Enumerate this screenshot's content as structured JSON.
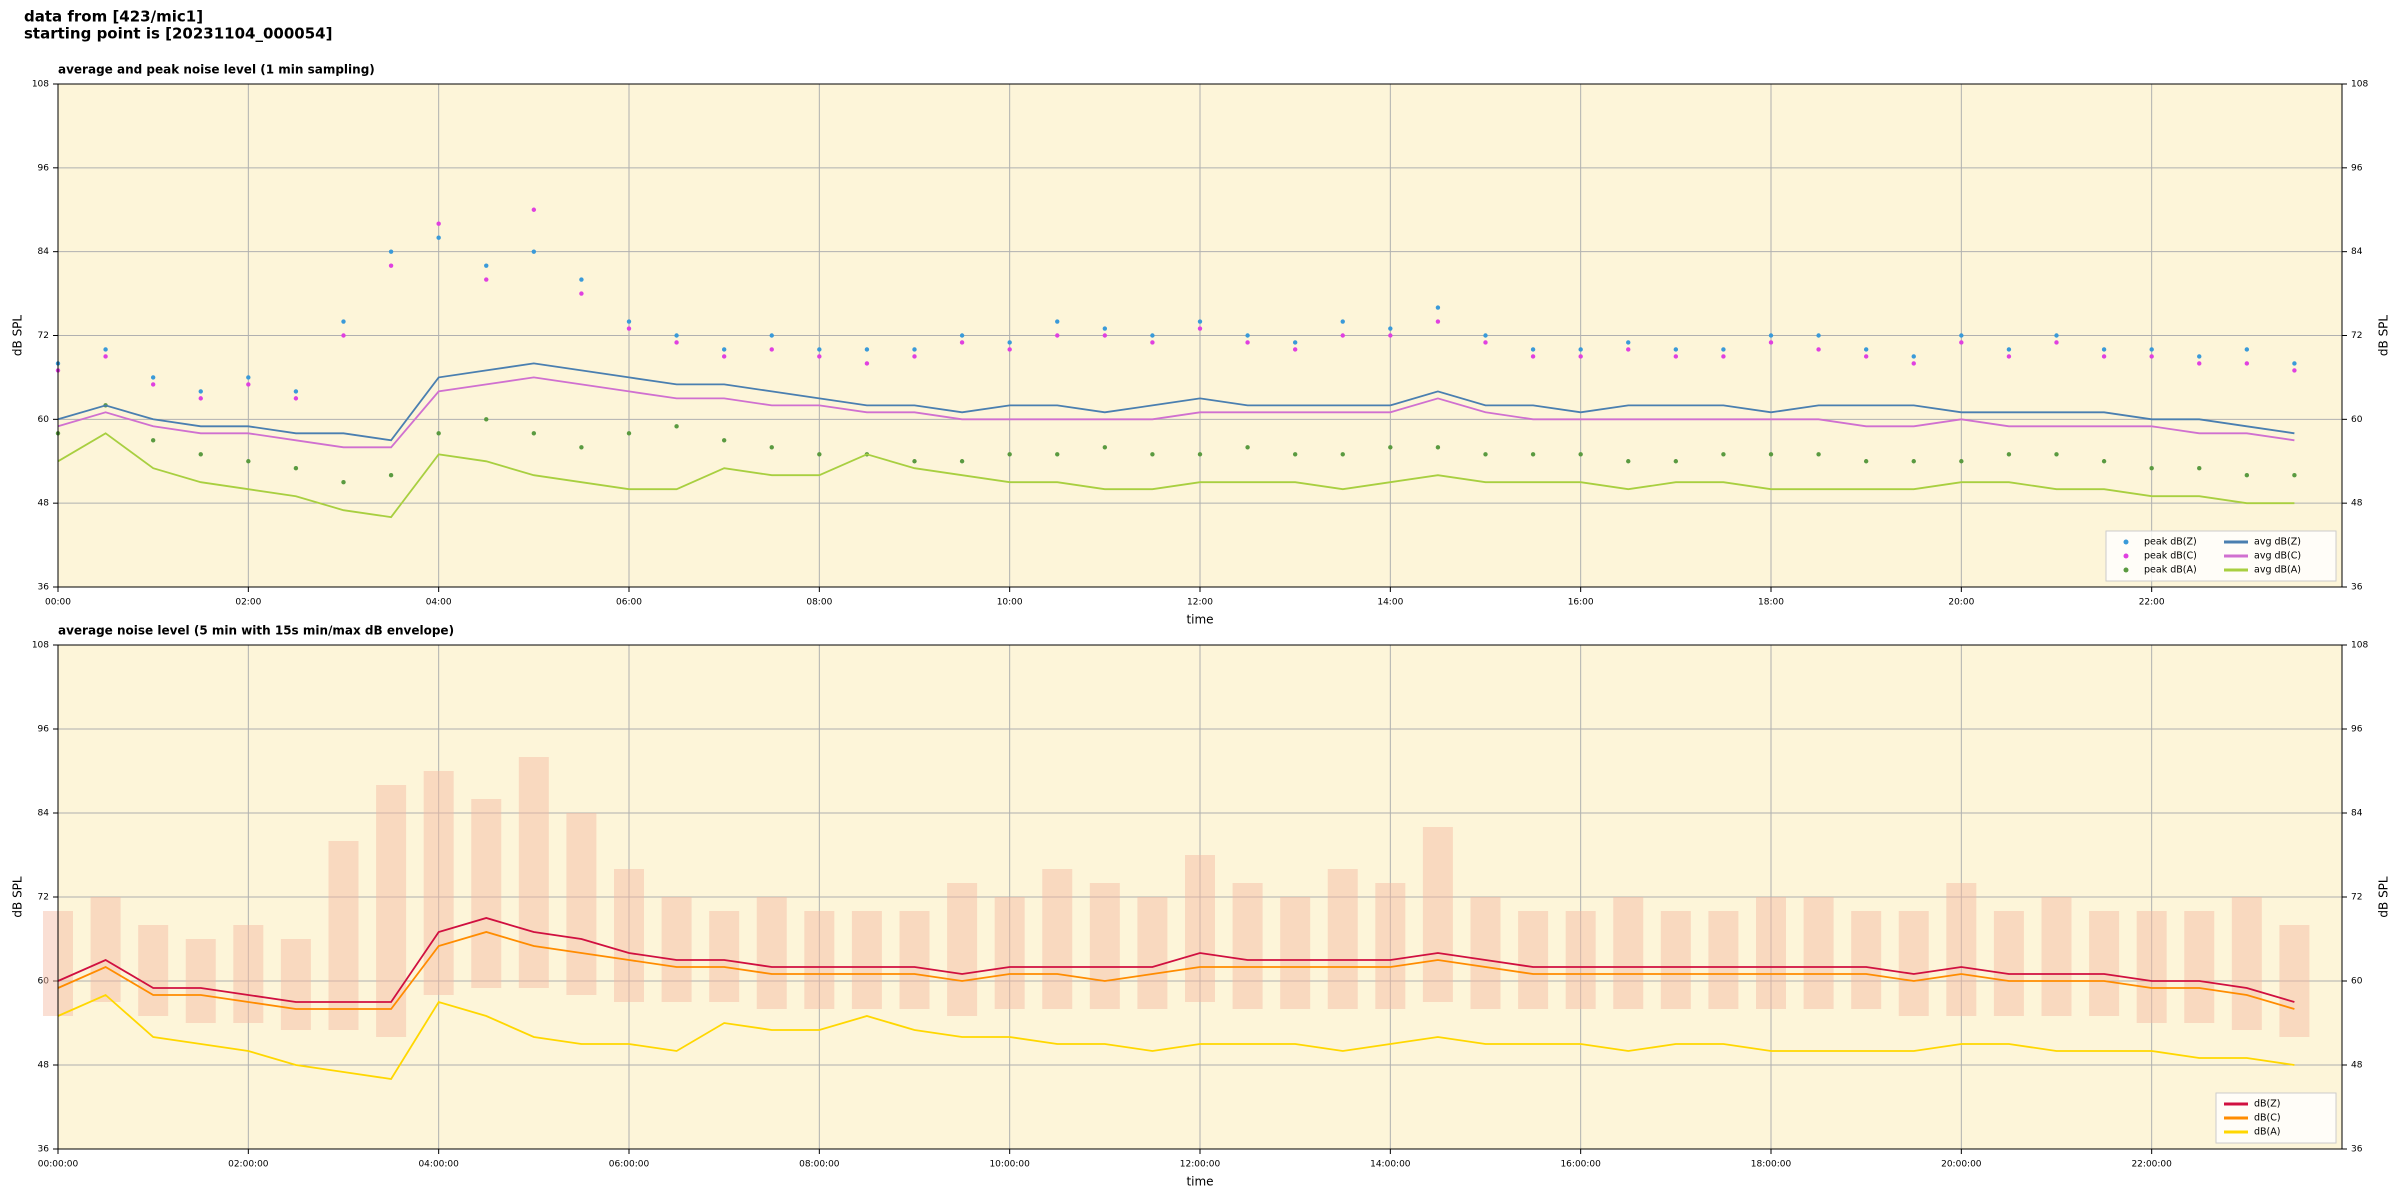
{
  "header": {
    "line1": "data from [423/mic1]",
    "line2": "starting point is [20231104_000054]"
  },
  "chart_data": [
    {
      "type": "line",
      "title": "average and peak noise level (1 min sampling)",
      "x_label": "time",
      "y_label": "dB SPL",
      "xlim": [
        "00:00",
        "24:00"
      ],
      "xticks": [
        "00:00",
        "02:00",
        "04:00",
        "06:00",
        "08:00",
        "10:00",
        "12:00",
        "14:00",
        "16:00",
        "18:00",
        "20:00",
        "22:00"
      ],
      "ylim": [
        36,
        108
      ],
      "yticks": [
        36,
        48,
        60,
        72,
        84,
        96,
        108
      ],
      "grid": true,
      "legend": "lower right",
      "x": [
        "00:00",
        "00:30",
        "01:00",
        "01:30",
        "02:00",
        "02:30",
        "03:00",
        "03:30",
        "04:00",
        "04:30",
        "05:00",
        "05:30",
        "06:00",
        "06:30",
        "07:00",
        "07:30",
        "08:00",
        "08:30",
        "09:00",
        "09:30",
        "10:00",
        "10:30",
        "11:00",
        "11:30",
        "12:00",
        "12:30",
        "13:00",
        "13:30",
        "14:00",
        "14:30",
        "15:00",
        "15:30",
        "16:00",
        "16:30",
        "17:00",
        "17:30",
        "18:00",
        "18:30",
        "19:00",
        "19:30",
        "20:00",
        "20:30",
        "21:00",
        "21:30",
        "22:00",
        "22:30",
        "23:00",
        "23:30"
      ],
      "series": [
        {
          "name": "peak dB(Z)",
          "type": "scatter",
          "color": "#3a9ad9",
          "values": [
            68,
            70,
            66,
            64,
            66,
            64,
            74,
            84,
            86,
            82,
            84,
            80,
            74,
            72,
            70,
            72,
            70,
            70,
            70,
            72,
            71,
            74,
            73,
            72,
            74,
            72,
            71,
            74,
            73,
            76,
            72,
            70,
            70,
            71,
            70,
            70,
            72,
            72,
            70,
            69,
            72,
            70,
            72,
            70,
            70,
            69,
            70,
            68
          ]
        },
        {
          "name": "peak dB(C)",
          "type": "scatter",
          "color": "#e040e0",
          "values": [
            67,
            69,
            65,
            63,
            65,
            63,
            72,
            82,
            88,
            80,
            90,
            78,
            73,
            71,
            69,
            70,
            69,
            68,
            69,
            71,
            70,
            72,
            72,
            71,
            73,
            71,
            70,
            72,
            72,
            74,
            71,
            69,
            69,
            70,
            69,
            69,
            71,
            70,
            69,
            68,
            71,
            69,
            71,
            69,
            69,
            68,
            68,
            67
          ]
        },
        {
          "name": "peak dB(A)",
          "type": "scatter",
          "color": "#5a9a40",
          "values": [
            58,
            62,
            57,
            55,
            54,
            53,
            51,
            52,
            58,
            60,
            58,
            56,
            58,
            59,
            57,
            56,
            55,
            55,
            54,
            54,
            55,
            55,
            56,
            55,
            55,
            56,
            55,
            55,
            56,
            56,
            55,
            55,
            55,
            54,
            54,
            55,
            55,
            55,
            54,
            54,
            54,
            55,
            55,
            54,
            53,
            53,
            52,
            52
          ]
        },
        {
          "name": "avg dB(Z)",
          "type": "line",
          "color": "#4a7fb0",
          "values": [
            60,
            62,
            60,
            59,
            59,
            58,
            58,
            57,
            66,
            67,
            68,
            67,
            66,
            65,
            65,
            64,
            63,
            62,
            62,
            61,
            62,
            62,
            61,
            62,
            63,
            62,
            62,
            62,
            62,
            64,
            62,
            62,
            61,
            62,
            62,
            62,
            61,
            62,
            62,
            62,
            61,
            61,
            61,
            61,
            60,
            60,
            59,
            58
          ]
        },
        {
          "name": "avg dB(C)",
          "type": "line",
          "color": "#d070d0",
          "values": [
            59,
            61,
            59,
            58,
            58,
            57,
            56,
            56,
            64,
            65,
            66,
            65,
            64,
            63,
            63,
            62,
            62,
            61,
            61,
            60,
            60,
            60,
            60,
            60,
            61,
            61,
            61,
            61,
            61,
            63,
            61,
            60,
            60,
            60,
            60,
            60,
            60,
            60,
            59,
            59,
            60,
            59,
            59,
            59,
            59,
            58,
            58,
            57
          ]
        },
        {
          "name": "avg dB(A)",
          "type": "line",
          "color": "#a8cf40",
          "values": [
            54,
            58,
            53,
            51,
            50,
            49,
            47,
            46,
            55,
            54,
            52,
            51,
            50,
            50,
            53,
            52,
            52,
            55,
            53,
            52,
            51,
            51,
            50,
            50,
            51,
            51,
            51,
            50,
            51,
            52,
            51,
            51,
            51,
            50,
            51,
            51,
            50,
            50,
            50,
            50,
            51,
            51,
            50,
            50,
            49,
            49,
            48,
            48
          ]
        }
      ]
    },
    {
      "type": "line",
      "title": "average noise level (5 min with 15s min/max dB envelope)",
      "x_label": "time",
      "y_label": "dB SPL",
      "xlim": [
        "00:00",
        "24:00"
      ],
      "xticks": [
        {
          "value": "00:00",
          "label": "00:00:00"
        },
        {
          "value": "02:00",
          "label": "02:00:00"
        },
        {
          "value": "04:00",
          "label": "04:00:00"
        },
        {
          "value": "06:00",
          "label": "06:00:00"
        },
        {
          "value": "08:00",
          "label": "08:00:00"
        },
        {
          "value": "10:00",
          "label": "10:00:00"
        },
        {
          "value": "12:00",
          "label": "12:00:00"
        },
        {
          "value": "14:00",
          "label": "14:00:00"
        },
        {
          "value": "16:00",
          "label": "16:00:00"
        },
        {
          "value": "18:00",
          "label": "18:00:00"
        },
        {
          "value": "20:00",
          "label": "20:00:00"
        },
        {
          "value": "22:00",
          "label": "22:00:00"
        }
      ],
      "ylim": [
        36,
        108
      ],
      "yticks": [
        36,
        48,
        60,
        72,
        84,
        96,
        108
      ],
      "grid": true,
      "legend": "lower right",
      "x": [
        "00:00",
        "00:30",
        "01:00",
        "01:30",
        "02:00",
        "02:30",
        "03:00",
        "03:30",
        "04:00",
        "04:30",
        "05:00",
        "05:30",
        "06:00",
        "06:30",
        "07:00",
        "07:30",
        "08:00",
        "08:30",
        "09:00",
        "09:30",
        "10:00",
        "10:30",
        "11:00",
        "11:30",
        "12:00",
        "12:30",
        "13:00",
        "13:30",
        "14:00",
        "14:30",
        "15:00",
        "15:30",
        "16:00",
        "16:30",
        "17:00",
        "17:30",
        "18:00",
        "18:30",
        "19:00",
        "19:30",
        "20:00",
        "20:30",
        "21:00",
        "21:30",
        "22:00",
        "22:30",
        "23:00",
        "23:30"
      ],
      "envelope": {
        "color": "#f4b8a0",
        "low": [
          55,
          57,
          55,
          54,
          54,
          53,
          53,
          52,
          58,
          59,
          59,
          58,
          57,
          57,
          57,
          56,
          56,
          56,
          56,
          55,
          56,
          56,
          56,
          56,
          57,
          56,
          56,
          56,
          56,
          57,
          56,
          56,
          56,
          56,
          56,
          56,
          56,
          56,
          56,
          55,
          55,
          55,
          55,
          55,
          54,
          54,
          53,
          52
        ],
        "high": [
          70,
          72,
          68,
          66,
          68,
          66,
          80,
          88,
          90,
          86,
          92,
          84,
          76,
          72,
          70,
          72,
          70,
          70,
          70,
          74,
          72,
          76,
          74,
          72,
          78,
          74,
          72,
          76,
          74,
          82,
          72,
          70,
          70,
          72,
          70,
          70,
          72,
          72,
          70,
          70,
          74,
          70,
          72,
          70,
          70,
          70,
          72,
          68
        ]
      },
      "series": [
        {
          "name": "dB(Z)",
          "type": "line",
          "color": "#d01040",
          "values": [
            60,
            63,
            59,
            59,
            58,
            57,
            57,
            57,
            67,
            69,
            67,
            66,
            64,
            63,
            63,
            62,
            62,
            62,
            62,
            61,
            62,
            62,
            62,
            62,
            64,
            63,
            63,
            63,
            63,
            64,
            63,
            62,
            62,
            62,
            62,
            62,
            62,
            62,
            62,
            61,
            62,
            61,
            61,
            61,
            60,
            60,
            59,
            57
          ]
        },
        {
          "name": "dB(C)",
          "type": "line",
          "color": "#ff8c00",
          "values": [
            59,
            62,
            58,
            58,
            57,
            56,
            56,
            56,
            65,
            67,
            65,
            64,
            63,
            62,
            62,
            61,
            61,
            61,
            61,
            60,
            61,
            61,
            60,
            61,
            62,
            62,
            62,
            62,
            62,
            63,
            62,
            61,
            61,
            61,
            61,
            61,
            61,
            61,
            61,
            60,
            61,
            60,
            60,
            60,
            59,
            59,
            58,
            56
          ]
        },
        {
          "name": "dB(A)",
          "type": "line",
          "color": "#ffd700",
          "values": [
            55,
            58,
            52,
            51,
            50,
            48,
            47,
            46,
            57,
            55,
            52,
            51,
            51,
            50,
            54,
            53,
            53,
            55,
            53,
            52,
            52,
            51,
            51,
            50,
            51,
            51,
            51,
            50,
            51,
            52,
            51,
            51,
            51,
            50,
            51,
            51,
            50,
            50,
            50,
            50,
            51,
            51,
            50,
            50,
            50,
            49,
            49,
            48
          ]
        }
      ]
    }
  ]
}
